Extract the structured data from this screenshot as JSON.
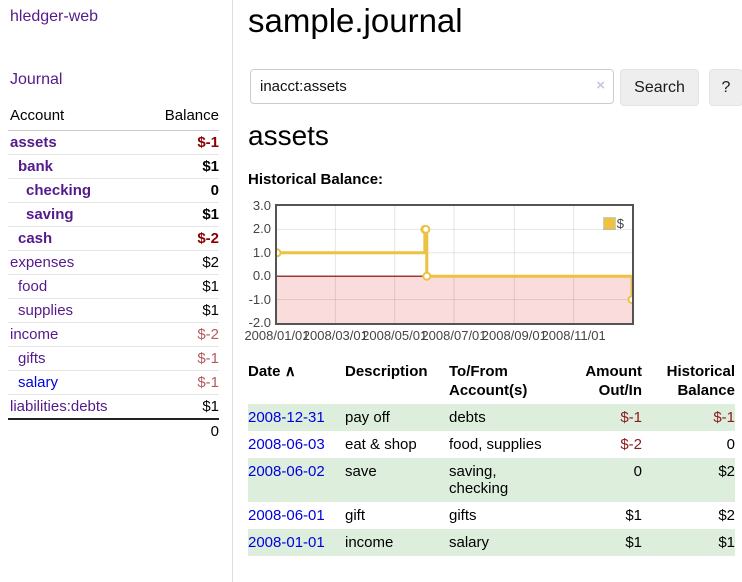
{
  "app": {
    "brand": "hledger-web",
    "nav_journal": "Journal"
  },
  "sidebar": {
    "col_account": "Account",
    "col_balance": "Balance",
    "accounts": [
      {
        "name": "assets",
        "indent": 0,
        "bold": true,
        "blue": false,
        "balance": "$-1",
        "cls": "neg-strong"
      },
      {
        "name": "bank",
        "indent": 1,
        "bold": true,
        "blue": false,
        "balance": "$1",
        "cls": ""
      },
      {
        "name": "checking",
        "indent": 2,
        "bold": true,
        "blue": false,
        "balance": "0",
        "cls": ""
      },
      {
        "name": "saving",
        "indent": 2,
        "bold": true,
        "blue": false,
        "balance": "$1",
        "cls": ""
      },
      {
        "name": "cash",
        "indent": 1,
        "bold": true,
        "blue": false,
        "balance": "$-2",
        "cls": "neg-strong"
      },
      {
        "name": "expenses",
        "indent": 0,
        "bold": false,
        "blue": false,
        "balance": "$2",
        "cls": ""
      },
      {
        "name": "food",
        "indent": 1,
        "bold": false,
        "blue": false,
        "balance": "$1",
        "cls": ""
      },
      {
        "name": "supplies",
        "indent": 1,
        "bold": false,
        "blue": false,
        "balance": "$1",
        "cls": ""
      },
      {
        "name": "income",
        "indent": 0,
        "bold": false,
        "blue": false,
        "balance": "$-2",
        "cls": "neg-muted"
      },
      {
        "name": "gifts",
        "indent": 1,
        "bold": false,
        "blue": false,
        "balance": "$-1",
        "cls": "neg-muted"
      },
      {
        "name": "salary",
        "indent": 1,
        "bold": false,
        "blue": true,
        "balance": "$-1",
        "cls": "neg-muted"
      },
      {
        "name": "liabilities:debts",
        "indent": 0,
        "bold": false,
        "blue": false,
        "balance": "$1",
        "cls": ""
      }
    ],
    "total": "0"
  },
  "main": {
    "title": "sample.journal",
    "search": {
      "value": "inacct:assets",
      "clear_icon": "×",
      "button_label": "Search",
      "help_label": "?"
    },
    "account_heading": "assets",
    "chart_heading": "Historical Balance:"
  },
  "chart_data": {
    "type": "line",
    "title": "Historical Balance:",
    "legend": "$",
    "legend_position": "top-right",
    "grid": true,
    "x_range": [
      "2008-01-01",
      "2008-12-31"
    ],
    "x_ticks": [
      "2008/01/01",
      "2008/03/01",
      "2008/05/01",
      "2008/07/01",
      "2008/09/01",
      "2008/11/01"
    ],
    "y_ticks": [
      "3.0",
      "2.0",
      "1.0",
      "0.0",
      "-1.0",
      "-2.0"
    ],
    "ylim": [
      -2,
      3
    ],
    "series": [
      {
        "name": "$",
        "color": "#edc240",
        "step": true,
        "points": [
          [
            "2008-01-01",
            1
          ],
          [
            "2008-06-01",
            2
          ],
          [
            "2008-06-02",
            2
          ],
          [
            "2008-06-03",
            0
          ],
          [
            "2008-12-31",
            -1
          ]
        ]
      }
    ],
    "negative_region_fill": "#fbdcdc",
    "zero_line_color": "#800000"
  },
  "transactions": {
    "headers": {
      "date": "Date",
      "sort_icon": "∧",
      "description": "Description",
      "accounts": "To/From\nAccount(s)",
      "amount": "Amount\nOut/In",
      "balance": "Historical\nBalance"
    },
    "rows": [
      {
        "date": "2008-12-31",
        "description": "pay off",
        "accounts": "debts",
        "amount": "$-1",
        "amount_neg": true,
        "balance": "$-1",
        "balance_neg": true,
        "shaded": true
      },
      {
        "date": "2008-06-03",
        "description": "eat & shop",
        "accounts": "food, supplies",
        "amount": "$-2",
        "amount_neg": true,
        "balance": "0",
        "balance_neg": false,
        "shaded": false
      },
      {
        "date": "2008-06-02",
        "description": "save",
        "accounts": "saving, checking",
        "amount": "0",
        "amount_neg": false,
        "balance": "$2",
        "balance_neg": false,
        "shaded": true
      },
      {
        "date": "2008-06-01",
        "description": "gift",
        "accounts": "gifts",
        "amount": "$1",
        "amount_neg": false,
        "balance": "$2",
        "balance_neg": false,
        "shaded": false
      },
      {
        "date": "2008-01-01",
        "description": "income",
        "accounts": "salary",
        "amount": "$1",
        "amount_neg": false,
        "balance": "$1",
        "balance_neg": false,
        "shaded": true
      }
    ]
  },
  "colors": {
    "link_purple": "#551a8b",
    "link_blue": "#0000e0",
    "neg_strong": "#8b0000",
    "neg_muted": "#b45c60",
    "row_shade_green": "#ddeedd",
    "chart_line_gold": "#edc240"
  }
}
